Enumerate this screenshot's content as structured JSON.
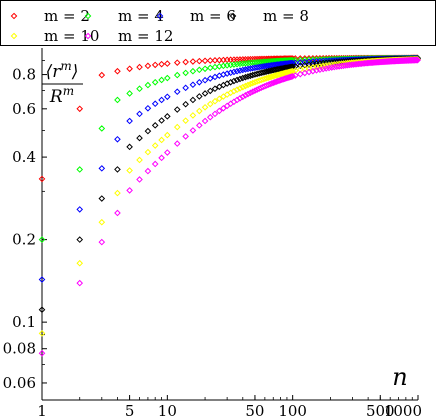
{
  "chart_data": {
    "type": "scatter",
    "title": "",
    "xlabel": "n",
    "ylabel_num": "⟨r",
    "ylabel_num_sup": "m",
    "ylabel_num_close": "⟩",
    "ylabel_den": "R",
    "ylabel_den_sup": "m",
    "x_scale": "log",
    "y_scale": "log",
    "xlim": [
      1,
      1000
    ],
    "ylim": [
      0.052,
      1.0
    ],
    "x_ticks": [
      1,
      5,
      10,
      50,
      100,
      500,
      1000
    ],
    "x_tick_labels": [
      "1",
      "5",
      "10",
      "50",
      "100",
      "500",
      "1000"
    ],
    "y_ticks": [
      0.06,
      0.08,
      0.1,
      0.2,
      0.4,
      0.6,
      0.8
    ],
    "y_tick_labels": [
      "0.06",
      "0.08",
      "0.1",
      "0.2",
      "0.4",
      "0.6",
      "0.8"
    ],
    "grid": false,
    "legend_position": "top",
    "marker": "diamond",
    "model_note_points_per_decade": 0,
    "series": [
      {
        "name": "m = 2",
        "m": 2,
        "color": "#ff0000",
        "k": 0.9,
        "y_at_1": 0.333
      },
      {
        "name": "m = 4",
        "m": 4,
        "color": "#00ff00",
        "k": 0.9,
        "y_at_1": 0.2
      },
      {
        "name": "m = 6",
        "m": 6,
        "color": "#0000ff",
        "k": 0.92,
        "y_at_1": 0.143
      },
      {
        "name": "m = 8",
        "m": 8,
        "color": "#000000",
        "k": 0.9,
        "y_at_1": 0.111
      },
      {
        "name": "m = 10",
        "m": 10,
        "color": "#ffff00",
        "k": 0.9,
        "y_at_1": 0.091
      },
      {
        "name": "m = 12",
        "m": 12,
        "color": "#ff00ff",
        "k": 0.9,
        "y_at_1": 0.077
      }
    ]
  }
}
